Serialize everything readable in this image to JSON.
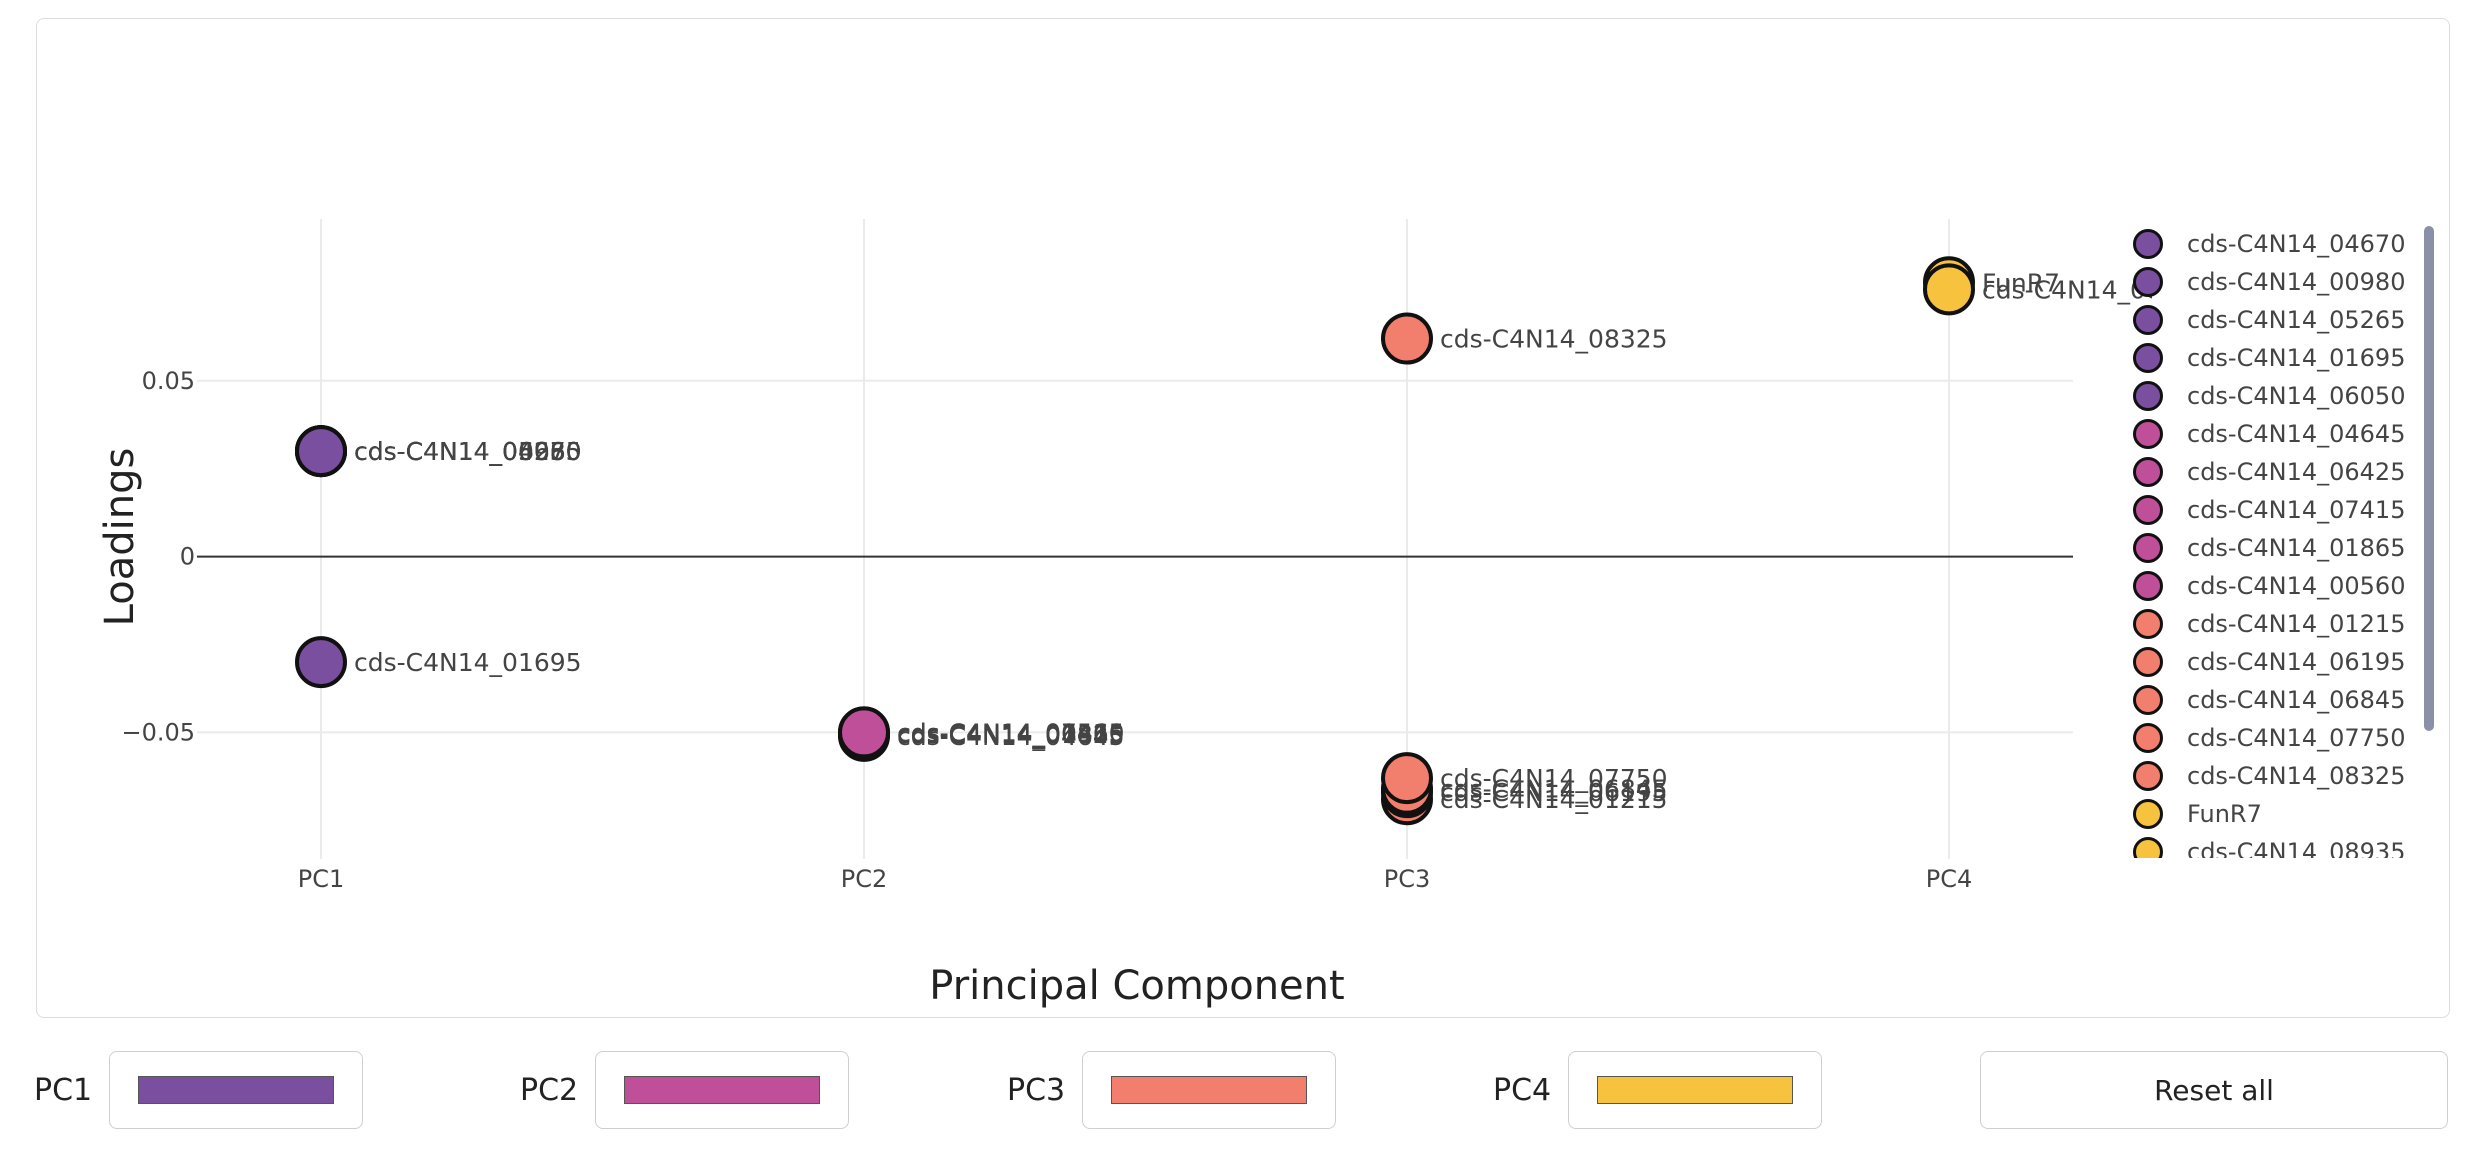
{
  "chart_data": {
    "type": "scatter",
    "title": "",
    "xlabel": "Principal Component",
    "ylabel": "Loadings",
    "categories": [
      "PC1",
      "PC2",
      "PC3",
      "PC4"
    ],
    "yticks": [
      {
        "value": 0.05,
        "label": "0.05"
      },
      {
        "value": 0,
        "label": "0"
      },
      {
        "value": -0.05,
        "label": "−0.05"
      }
    ],
    "ylim": [
      -0.086,
      0.096
    ],
    "grid": true,
    "legend_position": "right",
    "series": [
      {
        "name": "cds-C4N14_04670",
        "pc": "PC1",
        "y": 0.03,
        "color": "#7b4f9f"
      },
      {
        "name": "cds-C4N14_00980",
        "pc": "PC1",
        "y": 0.03,
        "color": "#7b4f9f"
      },
      {
        "name": "cds-C4N14_05265",
        "pc": "PC1",
        "y": 0.03,
        "color": "#7b4f9f"
      },
      {
        "name": "cds-C4N14_01695",
        "pc": "PC1",
        "y": -0.03,
        "color": "#7b4f9f"
      },
      {
        "name": "cds-C4N14_06050",
        "pc": "PC1",
        "y": 0.03,
        "color": "#7b4f9f"
      },
      {
        "name": "cds-C4N14_04645",
        "pc": "PC2",
        "y": -0.051,
        "color": "#bf4f98"
      },
      {
        "name": "cds-C4N14_06425",
        "pc": "PC2",
        "y": -0.0505,
        "color": "#bf4f98"
      },
      {
        "name": "cds-C4N14_07415",
        "pc": "PC2",
        "y": -0.05,
        "color": "#bf4f98"
      },
      {
        "name": "cds-C4N14_01865",
        "pc": "PC2",
        "y": -0.0505,
        "color": "#bf4f98"
      },
      {
        "name": "cds-C4N14_00560",
        "pc": "PC2",
        "y": -0.05,
        "color": "#bf4f98"
      },
      {
        "name": "cds-C4N14_01215",
        "pc": "PC3",
        "y": -0.069,
        "color": "#f27f6d"
      },
      {
        "name": "cds-C4N14_06195",
        "pc": "PC3",
        "y": -0.067,
        "color": "#f27f6d"
      },
      {
        "name": "cds-C4N14_06845",
        "pc": "PC3",
        "y": -0.066,
        "color": "#f27f6d"
      },
      {
        "name": "cds-C4N14_07750",
        "pc": "PC3",
        "y": -0.063,
        "color": "#f27f6d"
      },
      {
        "name": "cds-C4N14_08325",
        "pc": "PC3",
        "y": 0.062,
        "color": "#f27f6d"
      },
      {
        "name": "FunR7",
        "pc": "PC4",
        "y": 0.078,
        "color": "#f7c33e"
      },
      {
        "name": "cds-C4N14_08935",
        "pc": "PC4",
        "y": 0.076,
        "color": "#f7c33e"
      }
    ]
  },
  "controls": {
    "pc1_label": "PC1",
    "pc1_color": "#7b4f9f",
    "pc2_label": "PC2",
    "pc2_color": "#bf4f98",
    "pc3_label": "PC3",
    "pc3_color": "#f27f6d",
    "pc4_label": "PC4",
    "pc4_color": "#f7c33e",
    "reset_label": "Reset all"
  }
}
